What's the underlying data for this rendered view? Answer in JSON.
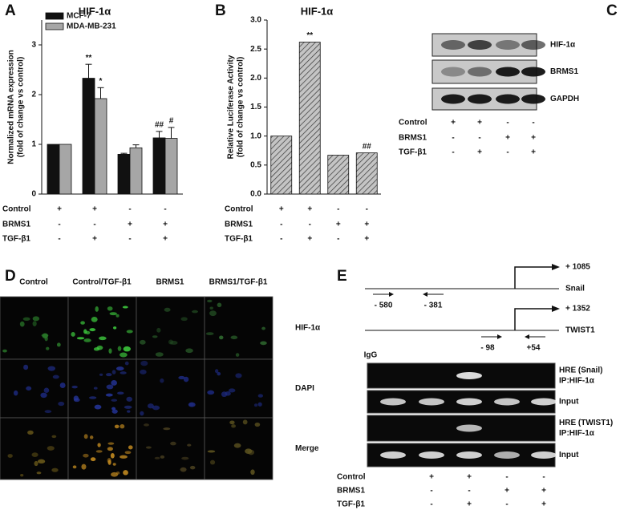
{
  "chart_data": [
    {
      "type": "bar",
      "panel": "A",
      "title": "HIF-1α",
      "y_label": [
        "Normalized mRNA expression",
        "(fold of change vs control)"
      ],
      "ylim": [
        0,
        3.5
      ],
      "yticks": [
        0,
        1,
        2,
        3
      ],
      "series": [
        {
          "name": "MCF-7",
          "color": "#111111",
          "values": [
            1,
            2.33,
            0.8,
            1.13
          ],
          "errors": [
            0,
            0.28,
            0.02,
            0.13
          ],
          "annotations": [
            null,
            "**",
            null,
            "##"
          ]
        },
        {
          "name": "MDA-MB-231",
          "color": "#a6a6a6",
          "values": [
            1,
            1.92,
            0.93,
            1.12
          ],
          "errors": [
            0,
            0.22,
            0.06,
            0.22
          ],
          "annotations": [
            null,
            "*",
            null,
            "#"
          ]
        }
      ],
      "conditions": [
        {
          "label": "Control",
          "marks": [
            "+",
            "+",
            "-",
            "-"
          ]
        },
        {
          "label": "BRMS1",
          "marks": [
            "-",
            "-",
            "+",
            "+"
          ]
        },
        {
          "label": "TGF-β1",
          "marks": [
            "-",
            "+",
            "-",
            "+"
          ]
        }
      ]
    },
    {
      "type": "bar",
      "panel": "B",
      "title": "HIF-1α",
      "y_label": [
        "Relative Luciferase Activity",
        "(fold of change vs control)"
      ],
      "ylim": [
        0,
        3
      ],
      "yticks": [
        {
          "value": 0,
          "label": "0.0"
        },
        0.5,
        {
          "value": 1,
          "label": "1.0"
        },
        1.5,
        {
          "value": 2,
          "label": "2.0"
        },
        2.5,
        {
          "value": 3,
          "label": "3.0"
        }
      ],
      "series": [
        {
          "color": "#c4c4c4",
          "hatch": true,
          "values": [
            1,
            2.62,
            0.67,
            0.71
          ],
          "annotations": [
            null,
            "**",
            null,
            "##"
          ]
        }
      ],
      "conditions": [
        {
          "label": "Control",
          "marks": [
            "+",
            "+",
            "-",
            "-"
          ]
        },
        {
          "label": "BRMS1",
          "marks": [
            "-",
            "-",
            "+",
            "+"
          ]
        },
        {
          "label": "TGF-β1",
          "marks": [
            "-",
            "+",
            "-",
            "+"
          ]
        }
      ]
    }
  ],
  "blot": {
    "panel": "C",
    "proteins": [
      "HIF-1α",
      "BRMS1",
      "GAPDH"
    ],
    "conditions": [
      {
        "label": "Control",
        "marks": [
          "+",
          "+",
          "-",
          "-"
        ]
      },
      {
        "label": "BRMS1",
        "marks": [
          "-",
          "-",
          "+",
          "+"
        ]
      },
      {
        "label": "TGF-β1",
        "marks": [
          "-",
          "+",
          "-",
          "+"
        ]
      }
    ]
  },
  "imaging": {
    "panel": "D",
    "columns": [
      "Control",
      "Control/TGF-β1",
      "BRMS1",
      "BRMS1/TGF-β1"
    ],
    "rows": [
      "HIF-1α",
      "DAPI",
      "Merge"
    ]
  },
  "chip": {
    "panel": "E",
    "promoters": [
      {
        "gene": "Snail",
        "tss": "+ 1085",
        "primers": [
          "- 580",
          "- 381"
        ]
      },
      {
        "gene": "TWIST1",
        "tss": "+ 1352",
        "primers": [
          "- 98",
          "+54"
        ]
      }
    ],
    "control_lane": "IgG",
    "gel_rows": [
      [
        "HRE (Snail)",
        "IP:HIF-1α"
      ],
      [
        "Input"
      ],
      [
        "HRE (TWIST1)",
        "IP:HIF-1α"
      ],
      [
        "Input"
      ]
    ],
    "conditions": [
      {
        "label": "Control",
        "marks": [
          "+",
          "+",
          "-",
          "-"
        ]
      },
      {
        "label": "BRMS1",
        "marks": [
          "-",
          "-",
          "+",
          "+"
        ]
      },
      {
        "label": "TGF-β1",
        "marks": [
          "-",
          "+",
          "-",
          "+"
        ]
      }
    ]
  }
}
